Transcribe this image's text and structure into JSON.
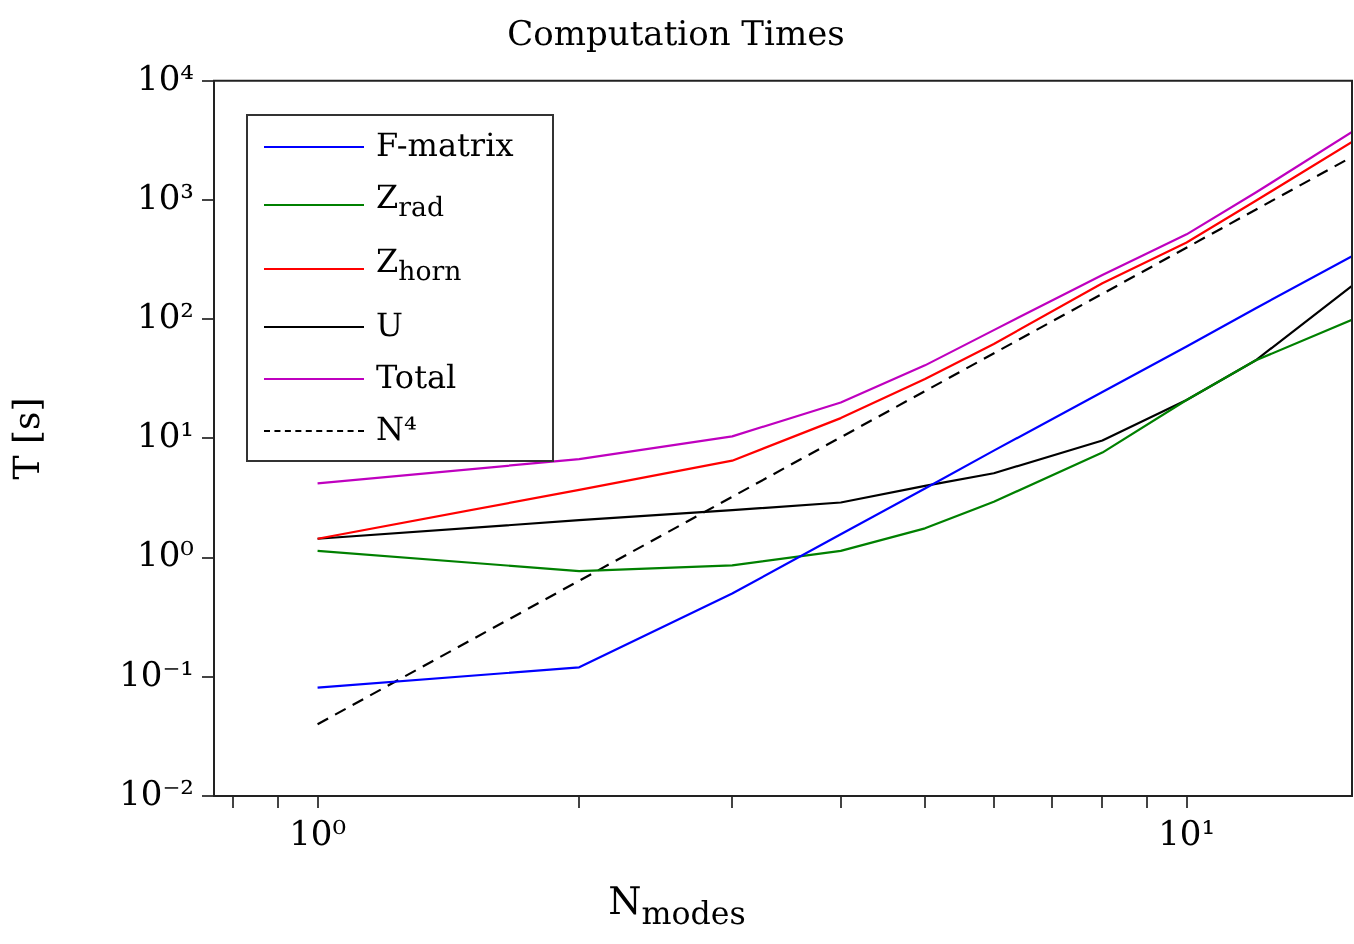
{
  "chart_data": {
    "type": "line",
    "title": "Computation Times",
    "xlabel": "N$_{modes}$",
    "ylabel": "T [s]",
    "log": "xy",
    "grid": false,
    "legend": "top left",
    "marker": "none",
    "line_style": "solid",
    "xlim": [
      0.76,
      15.5
    ],
    "ylim": [
      0.01,
      10000
    ],
    "xticks": [
      {
        "value": 0.8,
        "label": null
      },
      {
        "value": 0.9,
        "label": null
      },
      {
        "value": 1,
        "label": "10⁰"
      },
      {
        "value": 2,
        "label": null
      },
      {
        "value": 3,
        "label": null
      },
      {
        "value": 4,
        "label": null
      },
      {
        "value": 5,
        "label": null
      },
      {
        "value": 6,
        "label": null
      },
      {
        "value": 7,
        "label": null
      },
      {
        "value": 8,
        "label": null
      },
      {
        "value": 9,
        "label": null
      },
      {
        "value": 10,
        "label": "10¹"
      }
    ],
    "yticks": [
      {
        "value": 0.01,
        "label": "10⁻²"
      },
      {
        "value": 0.1,
        "label": "10⁻¹"
      },
      {
        "value": 1,
        "label": "10⁰"
      },
      {
        "value": 10,
        "label": "10¹"
      },
      {
        "value": 100,
        "label": "10²"
      },
      {
        "value": 1000,
        "label": "10³"
      },
      {
        "value": 10000,
        "label": "10⁴"
      }
    ],
    "x": [
      1,
      2,
      3,
      4,
      5,
      6,
      8,
      10,
      12,
      15.5
    ],
    "series": [
      {
        "name": "F-matrix",
        "color": "#0000ff",
        "values": [
          0.081,
          0.12,
          0.5,
          1.57,
          3.8,
          7.9,
          24.5,
          59,
          123,
          337
        ]
      },
      {
        "name": "Z$_{rad}$",
        "color": "#008000",
        "values": [
          1.14,
          0.77,
          0.86,
          1.14,
          1.76,
          2.94,
          7.6,
          21,
          45,
          99
        ]
      },
      {
        "name": "Z$_{horn}$",
        "color": "#ff0000",
        "values": [
          1.44,
          3.7,
          6.5,
          14.8,
          31.5,
          62,
          200,
          440,
          980,
          3070
        ]
      },
      {
        "name": "U",
        "color": "#000000",
        "values": [
          1.44,
          2.06,
          2.5,
          2.9,
          4.0,
          5.1,
          9.6,
          21,
          45,
          190
        ]
      },
      {
        "name": "Total",
        "color": "#bf00bf",
        "values": [
          4.2,
          6.7,
          10.4,
          20,
          41,
          81,
          235,
          515,
          1150,
          3720
        ]
      },
      {
        "name": "N⁴",
        "color": "#000000",
        "line_style": "dashed",
        "x": [
          1,
          15.5
        ],
        "values": [
          0.04,
          2300
        ]
      }
    ]
  }
}
